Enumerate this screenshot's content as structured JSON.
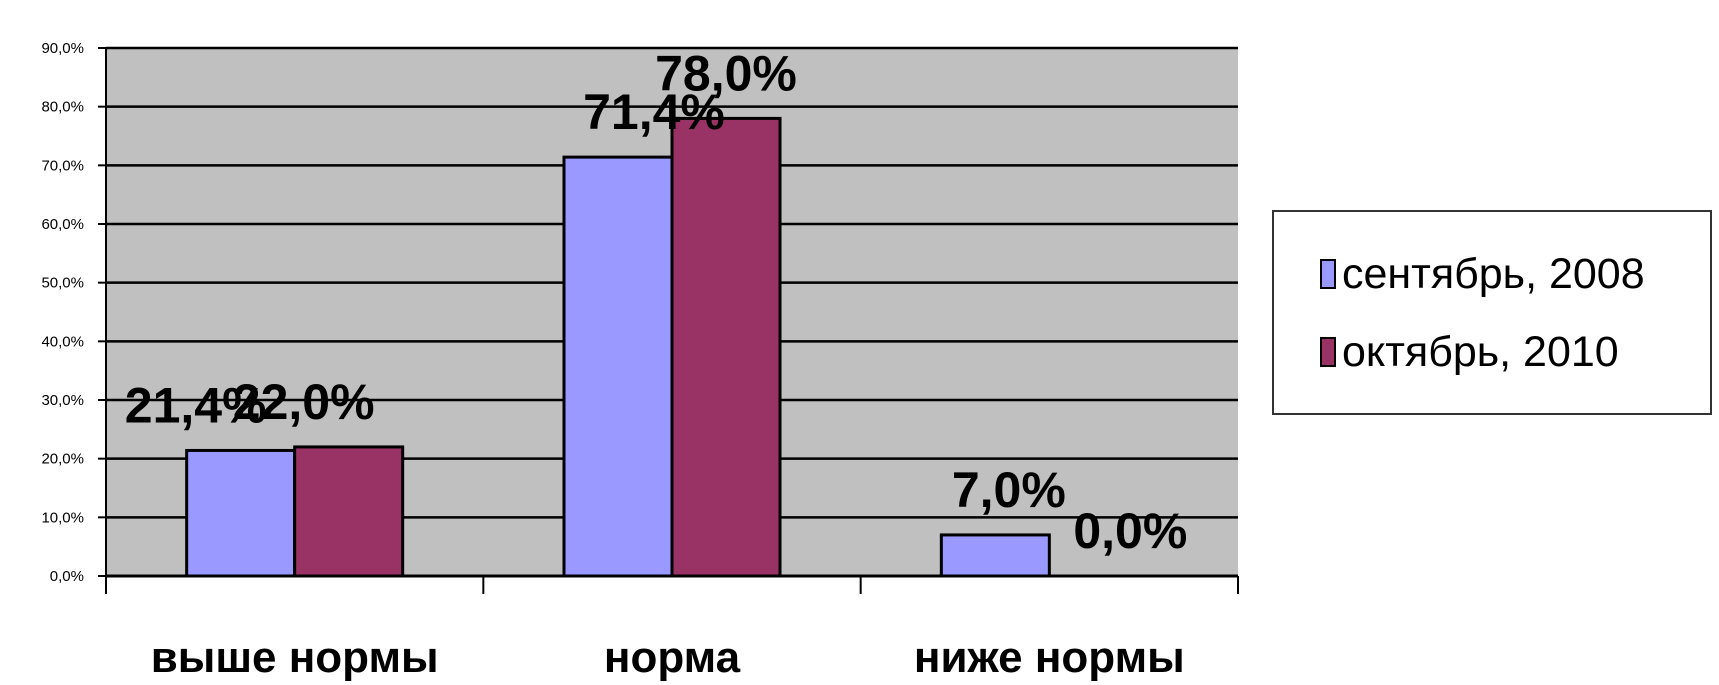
{
  "chart_data": {
    "type": "bar",
    "categories": [
      "выше нормы",
      "норма",
      "ниже нормы"
    ],
    "series": [
      {
        "name": "сентябрь, 2008",
        "values": [
          21.4,
          71.4,
          7.0
        ],
        "labels": [
          "21,4%",
          "71,4%",
          "7,0%"
        ],
        "color": "#9999ff"
      },
      {
        "name": "октябрь, 2010",
        "values": [
          22.0,
          78.0,
          0.0
        ],
        "labels": [
          "22,0%",
          "78,0%",
          "0,0%"
        ],
        "color": "#993366"
      }
    ],
    "ylim": [
      0,
      90
    ],
    "yticks": [
      "0,0%",
      "10,0%",
      "20,0%",
      "30,0%",
      "40,0%",
      "50,0%",
      "60,0%",
      "70,0%",
      "80,0%",
      "90,0%"
    ],
    "grid": true,
    "plot_background": "#c0c0c0",
    "legend_position": "right",
    "title": "",
    "xlabel": "",
    "ylabel": ""
  }
}
